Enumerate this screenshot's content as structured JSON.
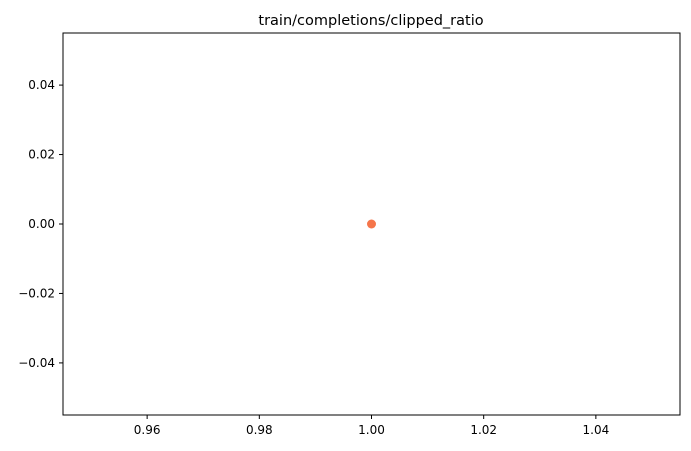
{
  "chart_data": {
    "type": "scatter",
    "title": "train/completions/clipped_ratio",
    "xlabel": "",
    "ylabel": "",
    "xlim": [
      0.945,
      1.055
    ],
    "ylim": [
      -0.055,
      0.055
    ],
    "xticks": [
      0.96,
      0.98,
      1.0,
      1.02,
      1.04
    ],
    "xtick_labels": [
      "0.96",
      "0.98",
      "1.00",
      "1.02",
      "1.04"
    ],
    "yticks": [
      0.04,
      0.02,
      0.0,
      -0.02,
      -0.04
    ],
    "ytick_labels": [
      "0.04",
      "0.02",
      "0.00",
      "−0.02",
      "−0.04"
    ],
    "grid": false,
    "series": [
      {
        "x": [
          1.0
        ],
        "y": [
          0.0
        ],
        "color": "#f5754a"
      }
    ]
  }
}
